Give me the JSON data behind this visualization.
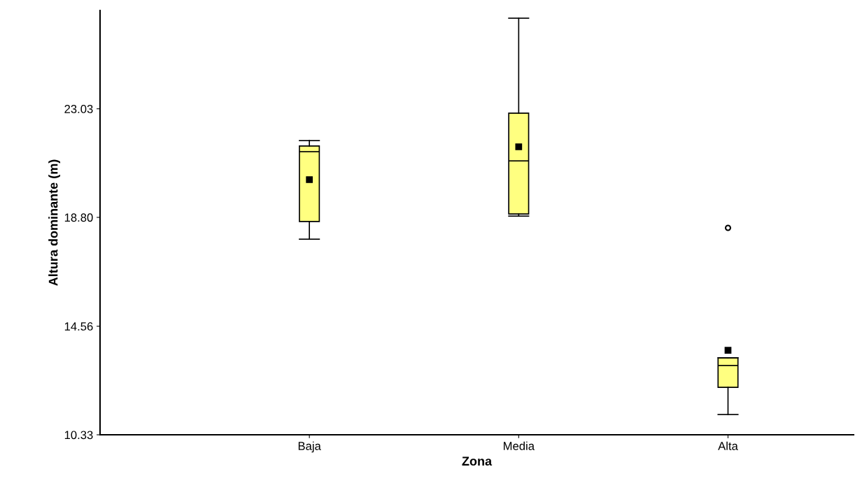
{
  "chart_data": {
    "type": "box",
    "xlabel": "Zona",
    "ylabel": "Altura dominante (m)",
    "categories": [
      "Baja",
      "Media",
      "Alta"
    ],
    "color": "#ffff80",
    "boxes": [
      {
        "low": 17.95,
        "q1": 18.64,
        "median": 21.36,
        "q3": 21.58,
        "high": 21.79,
        "mean": 20.27
      },
      {
        "low": 18.85,
        "q1": 18.93,
        "median": 21.0,
        "q3": 22.86,
        "high": 26.56,
        "mean": 21.55
      },
      {
        "low": 11.12,
        "q1": 12.18,
        "median": 13.03,
        "q3": 13.33,
        "high": 13.33,
        "mean": 13.62,
        "outliers": [
          18.39
        ]
      }
    ],
    "ylim": [
      10.33,
      26.86
    ],
    "yticks": [
      10.33,
      14.56,
      {
        "value": 18.8,
        "label": "18.80"
      },
      23.03
    ],
    "grid": false
  }
}
